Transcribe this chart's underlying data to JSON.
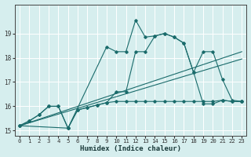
{
  "xlabel": "Humidex (Indice chaleur)",
  "background_color": "#d6eeee",
  "line_color": "#1a6b6b",
  "grid_color": "#b8d8d8",
  "xlim": [
    -0.5,
    23.5
  ],
  "ylim": [
    14.8,
    20.2
  ],
  "yticks": [
    15,
    16,
    17,
    18,
    19
  ],
  "xticks": [
    0,
    1,
    2,
    3,
    4,
    5,
    6,
    7,
    8,
    9,
    10,
    11,
    12,
    13,
    14,
    15,
    16,
    17,
    18,
    19,
    20,
    21,
    22,
    23
  ],
  "line1_x": [
    0,
    1,
    2,
    3,
    4,
    5,
    6,
    7,
    8,
    9,
    10,
    11,
    12,
    13,
    14,
    15,
    16,
    17,
    18,
    19,
    20,
    21,
    22,
    23
  ],
  "line1_y": [
    15.2,
    15.4,
    15.65,
    16.0,
    16.0,
    15.1,
    15.85,
    15.95,
    16.05,
    16.15,
    16.6,
    16.6,
    18.25,
    18.25,
    18.9,
    19.0,
    18.85,
    18.6,
    17.4,
    16.1,
    16.1,
    16.25,
    16.2,
    16.2
  ],
  "line2_x": [
    0,
    1,
    2,
    3,
    4,
    5,
    6,
    7,
    8,
    9,
    10,
    11,
    12,
    13,
    14,
    15,
    16,
    17,
    18,
    19,
    20,
    21,
    22,
    23
  ],
  "line2_y": [
    15.2,
    15.4,
    15.65,
    16.0,
    16.0,
    15.1,
    15.85,
    15.95,
    16.05,
    16.15,
    16.2,
    16.2,
    16.2,
    16.2,
    16.2,
    16.2,
    16.2,
    16.2,
    16.2,
    16.2,
    16.2,
    16.25,
    16.2,
    16.2
  ],
  "line3_x": [
    0,
    23
  ],
  "line3_y": [
    15.2,
    18.25
  ],
  "line4_x": [
    0,
    23
  ],
  "line4_y": [
    15.2,
    17.95
  ],
  "line5_x": [
    0,
    5,
    9,
    10,
    11,
    12,
    13,
    14,
    15,
    16,
    17,
    18,
    19,
    20,
    21,
    22,
    23
  ],
  "line5_y": [
    15.2,
    15.1,
    18.45,
    18.25,
    18.25,
    19.55,
    18.85,
    18.9,
    19.0,
    18.85,
    18.6,
    17.4,
    18.25,
    18.25,
    17.1,
    16.25,
    16.2
  ]
}
